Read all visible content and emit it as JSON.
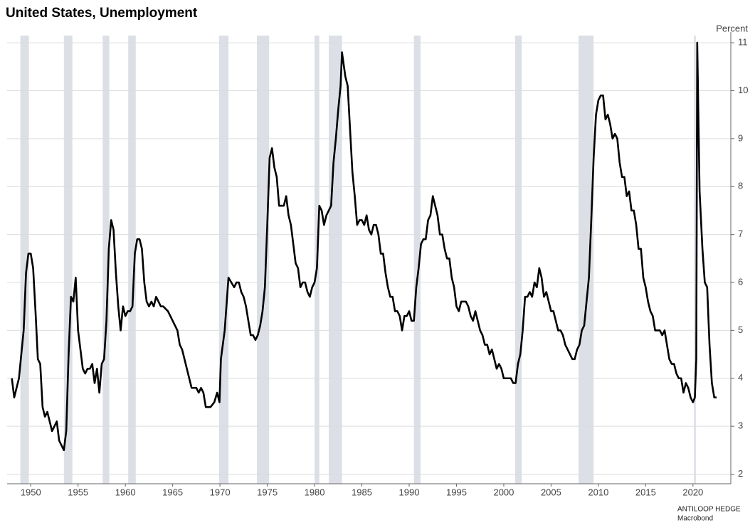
{
  "chart_data": {
    "type": "line",
    "title": "United States, Unemployment",
    "y_axis_label": "Percent",
    "source": [
      "ANTILOOP HEDGE",
      "Macrobond"
    ],
    "color": "#000000",
    "shade_color": "#dcdfe6",
    "grid": true,
    "y_axis_side": "right",
    "xlim": [
      1947.5,
      2024
    ],
    "xticks": [
      1950,
      1955,
      1960,
      1965,
      1970,
      1975,
      1980,
      1985,
      1990,
      1995,
      2000,
      2005,
      2010,
      2015,
      2020
    ],
    "ylim": [
      1.8,
      11.15
    ],
    "yticks": [
      2,
      3,
      4,
      5,
      6,
      7,
      8,
      9,
      10,
      11
    ],
    "shaded_periods": [
      [
        1948.9,
        1949.8
      ],
      [
        1953.5,
        1954.4
      ],
      [
        1957.6,
        1958.3
      ],
      [
        1960.3,
        1961.1
      ],
      [
        1969.9,
        1970.9
      ],
      [
        1973.9,
        1975.2
      ],
      [
        1980.0,
        1980.5
      ],
      [
        1981.5,
        1982.9
      ],
      [
        1990.5,
        1991.2
      ],
      [
        2001.2,
        2001.9
      ],
      [
        2007.9,
        2009.5
      ],
      [
        2020.1,
        2020.3
      ]
    ],
    "x": [
      1948.0,
      1948.25,
      1948.75,
      1949.25,
      1949.5,
      1949.75,
      1950.0,
      1950.25,
      1950.5,
      1950.75,
      1951.0,
      1951.25,
      1951.5,
      1951.75,
      1952.0,
      1952.25,
      1952.5,
      1952.75,
      1953.0,
      1953.25,
      1953.5,
      1953.75,
      1954.0,
      1954.25,
      1954.5,
      1954.75,
      1955.0,
      1955.25,
      1955.5,
      1955.75,
      1956.0,
      1956.25,
      1956.5,
      1956.75,
      1957.0,
      1957.25,
      1957.5,
      1957.75,
      1958.0,
      1958.25,
      1958.5,
      1958.75,
      1959.0,
      1959.25,
      1959.5,
      1959.75,
      1960.0,
      1960.25,
      1960.5,
      1960.75,
      1961.0,
      1961.25,
      1961.5,
      1961.75,
      1962.0,
      1962.25,
      1962.5,
      1962.75,
      1963.0,
      1963.25,
      1963.5,
      1963.75,
      1964.0,
      1964.5,
      1965.0,
      1965.5,
      1965.75,
      1966.0,
      1966.5,
      1967.0,
      1967.5,
      1967.75,
      1968.0,
      1968.25,
      1968.5,
      1969.0,
      1969.4,
      1969.7,
      1969.95,
      1970.1,
      1970.5,
      1970.9,
      1971.2,
      1971.5,
      1971.75,
      1972.0,
      1972.25,
      1972.5,
      1972.75,
      1973.0,
      1973.25,
      1973.5,
      1973.75,
      1974.0,
      1974.25,
      1974.5,
      1974.75,
      1975.0,
      1975.25,
      1975.5,
      1975.75,
      1976.0,
      1976.25,
      1976.5,
      1976.75,
      1977.0,
      1977.25,
      1977.5,
      1977.75,
      1978.0,
      1978.25,
      1978.5,
      1978.75,
      1979.0,
      1979.25,
      1979.5,
      1979.75,
      1980.0,
      1980.25,
      1980.5,
      1980.75,
      1981.0,
      1981.25,
      1981.5,
      1981.75,
      1982.0,
      1982.25,
      1982.5,
      1982.75,
      1982.9,
      1983.25,
      1983.5,
      1983.75,
      1984.0,
      1984.25,
      1984.5,
      1984.75,
      1985.0,
      1985.25,
      1985.5,
      1985.75,
      1986.0,
      1986.25,
      1986.5,
      1986.75,
      1987.0,
      1987.25,
      1987.5,
      1987.75,
      1988.0,
      1988.25,
      1988.5,
      1988.75,
      1989.0,
      1989.25,
      1989.5,
      1989.75,
      1990.0,
      1990.25,
      1990.5,
      1990.75,
      1991.0,
      1991.25,
      1991.5,
      1991.75,
      1992.0,
      1992.25,
      1992.5,
      1992.75,
      1993.0,
      1993.25,
      1993.5,
      1993.75,
      1994.0,
      1994.25,
      1994.5,
      1994.75,
      1995.0,
      1995.25,
      1995.5,
      1995.75,
      1996.0,
      1996.25,
      1996.5,
      1996.75,
      1997.0,
      1997.25,
      1997.5,
      1997.75,
      1998.0,
      1998.25,
      1998.5,
      1998.75,
      1999.0,
      1999.25,
      1999.5,
      1999.75,
      2000.0,
      2000.25,
      2000.5,
      2000.75,
      2001.0,
      2001.25,
      2001.5,
      2001.75,
      2002.0,
      2002.25,
      2002.5,
      2002.75,
      2003.0,
      2003.25,
      2003.5,
      2003.75,
      2004.0,
      2004.25,
      2004.5,
      2004.75,
      2005.0,
      2005.25,
      2005.5,
      2005.75,
      2006.0,
      2006.25,
      2006.5,
      2006.75,
      2007.0,
      2007.25,
      2007.5,
      2007.75,
      2008.0,
      2008.25,
      2008.5,
      2008.75,
      2009.0,
      2009.25,
      2009.5,
      2009.75,
      2010.0,
      2010.25,
      2010.5,
      2010.75,
      2011.0,
      2011.25,
      2011.5,
      2011.75,
      2012.0,
      2012.25,
      2012.5,
      2012.75,
      2013.0,
      2013.25,
      2013.5,
      2013.75,
      2014.0,
      2014.25,
      2014.5,
      2014.75,
      2015.0,
      2015.25,
      2015.5,
      2015.75,
      2016.0,
      2016.25,
      2016.5,
      2016.75,
      2017.0,
      2017.25,
      2017.5,
      2017.75,
      2018.0,
      2018.25,
      2018.5,
      2018.75,
      2019.0,
      2019.25,
      2019.5,
      2019.75,
      2020.0,
      2020.2,
      2020.35,
      2020.45,
      2020.7,
      2021.0,
      2021.25,
      2021.5,
      2021.75,
      2022.0,
      2022.25,
      2022.5
    ],
    "values": [
      4.0,
      3.6,
      4.0,
      5.0,
      6.2,
      6.6,
      6.6,
      6.3,
      5.4,
      4.4,
      4.3,
      3.4,
      3.2,
      3.3,
      3.1,
      2.9,
      3.0,
      3.1,
      2.7,
      2.6,
      2.5,
      2.9,
      4.5,
      5.7,
      5.6,
      6.1,
      5.0,
      4.6,
      4.2,
      4.1,
      4.2,
      4.2,
      4.3,
      3.9,
      4.2,
      3.7,
      4.3,
      4.4,
      5.2,
      6.7,
      7.3,
      7.1,
      6.2,
      5.5,
      5.0,
      5.5,
      5.3,
      5.4,
      5.4,
      5.5,
      6.6,
      6.9,
      6.9,
      6.7,
      6.0,
      5.6,
      5.5,
      5.6,
      5.5,
      5.7,
      5.6,
      5.5,
      5.5,
      5.4,
      5.2,
      5.0,
      4.7,
      4.6,
      4.2,
      3.8,
      3.8,
      3.7,
      3.8,
      3.7,
      3.4,
      3.4,
      3.5,
      3.7,
      3.5,
      4.4,
      5.0,
      6.1,
      6.0,
      5.9,
      6.0,
      6.0,
      5.8,
      5.7,
      5.5,
      5.2,
      4.9,
      4.9,
      4.8,
      4.9,
      5.1,
      5.4,
      5.9,
      7.2,
      8.6,
      8.8,
      8.4,
      8.2,
      7.6,
      7.6,
      7.6,
      7.8,
      7.4,
      7.2,
      6.8,
      6.4,
      6.3,
      5.9,
      6.0,
      6.0,
      5.8,
      5.7,
      5.9,
      6.0,
      6.3,
      7.6,
      7.5,
      7.2,
      7.4,
      7.5,
      7.6,
      8.5,
      9.0,
      9.6,
      10.1,
      10.8,
      10.3,
      10.1,
      9.2,
      8.3,
      7.8,
      7.2,
      7.3,
      7.3,
      7.2,
      7.4,
      7.1,
      7.0,
      7.2,
      7.2,
      7.0,
      6.6,
      6.6,
      6.2,
      5.9,
      5.7,
      5.7,
      5.4,
      5.4,
      5.3,
      5.0,
      5.3,
      5.3,
      5.4,
      5.2,
      5.2,
      5.9,
      6.3,
      6.8,
      6.9,
      6.9,
      7.3,
      7.4,
      7.8,
      7.6,
      7.4,
      7.0,
      7.0,
      6.7,
      6.5,
      6.5,
      6.1,
      5.9,
      5.5,
      5.4,
      5.6,
      5.6,
      5.6,
      5.5,
      5.3,
      5.2,
      5.4,
      5.2,
      5.0,
      4.9,
      4.7,
      4.7,
      4.5,
      4.6,
      4.4,
      4.2,
      4.3,
      4.2,
      4.0,
      4.0,
      4.0,
      4.0,
      3.9,
      3.9,
      4.3,
      4.5,
      5.0,
      5.7,
      5.7,
      5.8,
      5.7,
      6.0,
      5.9,
      6.3,
      6.1,
      5.7,
      5.8,
      5.6,
      5.4,
      5.4,
      5.2,
      5.0,
      5.0,
      4.9,
      4.7,
      4.6,
      4.5,
      4.4,
      4.4,
      4.6,
      4.7,
      5.0,
      5.1,
      5.6,
      6.1,
      7.3,
      8.6,
      9.5,
      9.8,
      9.9,
      9.9,
      9.4,
      9.5,
      9.3,
      9.0,
      9.1,
      9.0,
      8.5,
      8.2,
      8.2,
      7.8,
      7.9,
      7.5,
      7.5,
      7.2,
      6.7,
      6.7,
      6.1,
      5.9,
      5.6,
      5.4,
      5.3,
      5.0,
      5.0,
      5.0,
      4.9,
      5.0,
      4.7,
      4.4,
      4.3,
      4.3,
      4.1,
      4.0,
      4.0,
      3.7,
      3.9,
      3.8,
      3.6,
      3.5,
      3.6,
      4.4,
      11.0,
      7.9,
      6.7,
      6.0,
      5.9,
      4.7,
      3.9,
      3.6,
      3.6
    ]
  }
}
